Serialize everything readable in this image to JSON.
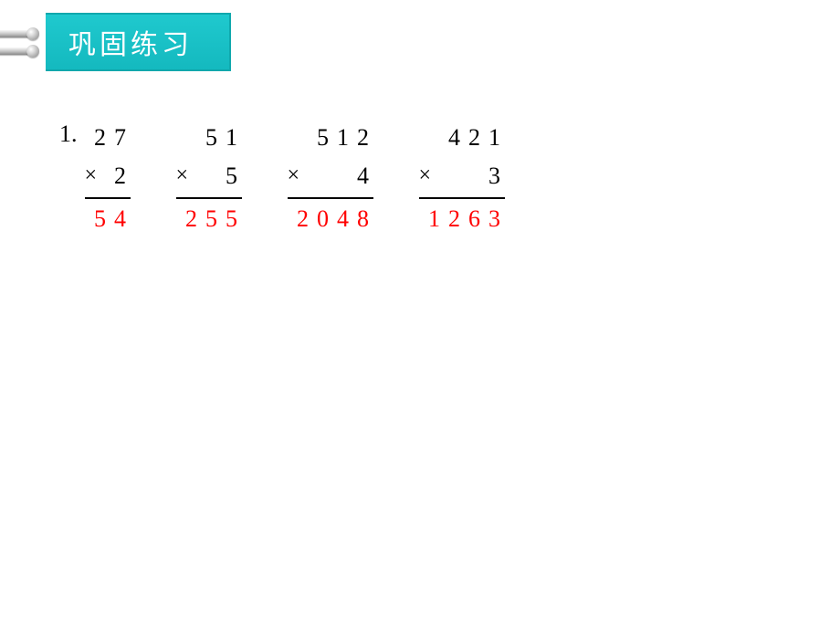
{
  "header": {
    "title": "巩固练习",
    "title_color": "#ffffff",
    "bar_color_top": "#1fc9ce",
    "bar_color_bottom": "#14b9bf",
    "bar_border": "#0fa8ad"
  },
  "problem_label": "1.",
  "problems": [
    {
      "multiplicand": [
        "2",
        "7"
      ],
      "multiplier": "2",
      "answer": [
        "5",
        "4"
      ],
      "width_digits": 2
    },
    {
      "multiplicand": [
        "5",
        "1"
      ],
      "multiplier": "5",
      "answer": [
        "2",
        "5",
        "5"
      ],
      "width_digits": 3
    },
    {
      "multiplicand": [
        "5",
        "1",
        "2"
      ],
      "multiplier": "4",
      "answer": [
        "2",
        "0",
        "4",
        "8"
      ],
      "width_digits": 4
    },
    {
      "multiplicand": [
        "4",
        "2",
        "1"
      ],
      "multiplier": "3",
      "answer": [
        "1",
        "2",
        "6",
        "3"
      ],
      "width_digits": 4
    }
  ],
  "colors": {
    "text": "#000000",
    "answer": "#ff0000",
    "background": "#ffffff"
  },
  "typography": {
    "title_fontsize": 30,
    "digit_fontsize": 26,
    "font_family": "SimSun"
  },
  "operator_symbol": "×"
}
